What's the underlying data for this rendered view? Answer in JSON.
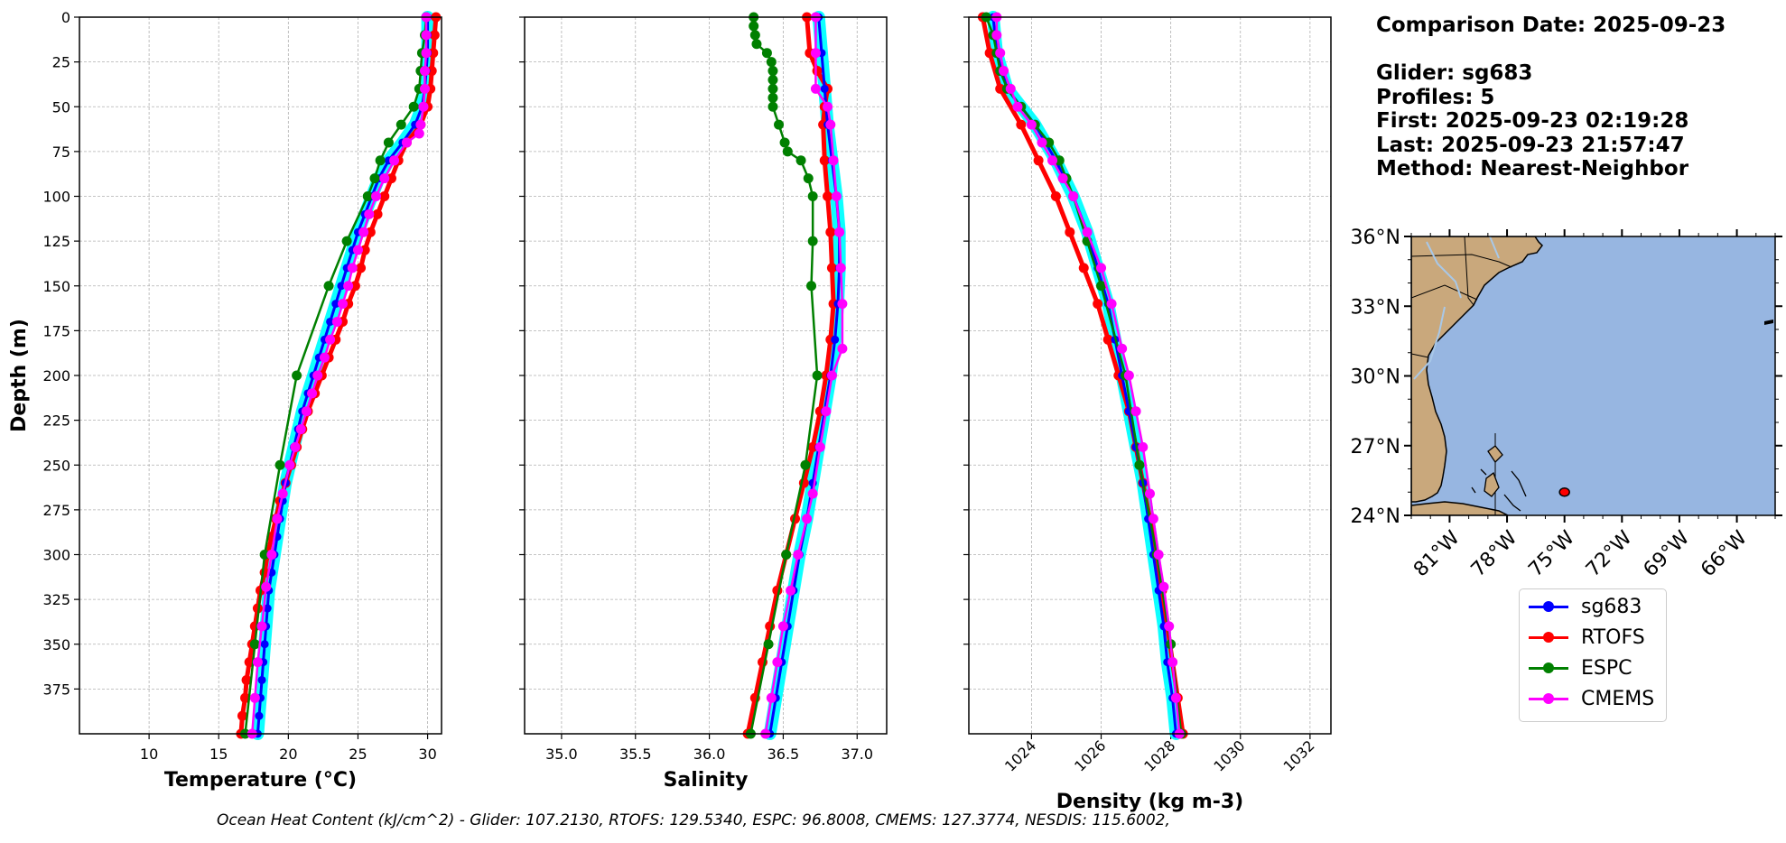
{
  "header": {
    "comparison_date": "Comparison Date: 2025-09-23",
    "glider": "Glider: sg683",
    "profiles": "Profiles: 5",
    "first": "First: 2025-09-23 02:19:28",
    "last": "Last: 2025-09-23 21:57:47",
    "method": "Method: Nearest-Neighbor"
  },
  "footer": "Ocean Heat Content (kJ/cm^2) - Glider: 107.2130,  RTOFS: 129.5340,  ESPC: 96.8008,  CMEMS: 127.3774,  NESDIS: 115.6002,",
  "legend": [
    {
      "name": "sg683",
      "color": "#0000ff"
    },
    {
      "name": "RTOFS",
      "color": "#ff0000"
    },
    {
      "name": "ESPC",
      "color": "#008000"
    },
    {
      "name": "CMEMS",
      "color": "#ff00ff"
    }
  ],
  "colors": {
    "glider_envelope": "#00ffff",
    "ocean": "#97b6e1",
    "land": "#c9a87c",
    "rivers": "#a8c8e8"
  },
  "chart_data": [
    {
      "type": "line",
      "title": "",
      "xlabel": "Temperature (°C)",
      "ylabel": "Depth (m)",
      "xlim": [
        5,
        31
      ],
      "ylim": [
        400,
        0
      ],
      "xticks": [
        "10",
        "15",
        "20",
        "25",
        "30"
      ],
      "yticks": [
        "0",
        "25",
        "50",
        "75",
        "100",
        "125",
        "150",
        "175",
        "200",
        "225",
        "250",
        "275",
        "300",
        "325",
        "350",
        "375"
      ],
      "grid": true,
      "series": [
        {
          "name": "sg683",
          "depth": [
            0,
            10,
            20,
            30,
            40,
            50,
            60,
            70,
            80,
            90,
            100,
            110,
            120,
            130,
            140,
            150,
            160,
            170,
            180,
            190,
            200,
            210,
            220,
            230,
            240,
            250,
            260,
            270,
            280,
            290,
            300,
            310,
            320,
            330,
            340,
            350,
            360,
            370,
            380,
            390,
            400
          ],
          "values": [
            30.0,
            30.0,
            30.0,
            29.9,
            29.8,
            29.6,
            29.1,
            28.2,
            27.2,
            26.5,
            26.0,
            25.5,
            25.0,
            24.6,
            24.2,
            23.8,
            23.4,
            23.0,
            22.6,
            22.2,
            21.8,
            21.4,
            21.0,
            20.7,
            20.4,
            20.1,
            19.8,
            19.6,
            19.4,
            19.2,
            19.0,
            18.8,
            18.6,
            18.5,
            18.4,
            18.3,
            18.2,
            18.1,
            18.0,
            17.9,
            17.8
          ]
        },
        {
          "name": "RTOFS",
          "depth": [
            0,
            10,
            20,
            30,
            40,
            50,
            60,
            70,
            80,
            90,
            100,
            110,
            120,
            130,
            140,
            150,
            160,
            170,
            180,
            190,
            200,
            210,
            220,
            230,
            240,
            250,
            260,
            270,
            280,
            290,
            300,
            310,
            320,
            330,
            340,
            350,
            360,
            370,
            380,
            390,
            400
          ],
          "values": [
            30.6,
            30.5,
            30.4,
            30.3,
            30.2,
            30.0,
            29.5,
            28.5,
            27.9,
            27.4,
            26.9,
            26.4,
            25.9,
            25.5,
            25.2,
            24.8,
            24.3,
            23.9,
            23.4,
            22.9,
            22.4,
            21.9,
            21.4,
            21.0,
            20.6,
            20.2,
            19.8,
            19.4,
            19.1,
            18.8,
            18.5,
            18.3,
            18.0,
            17.8,
            17.6,
            17.4,
            17.2,
            17.0,
            16.9,
            16.7,
            16.6
          ]
        },
        {
          "name": "ESPC",
          "depth": [
            0,
            10,
            20,
            30,
            40,
            50,
            60,
            70,
            80,
            90,
            100,
            125,
            150,
            200,
            250,
            300,
            350,
            400
          ],
          "values": [
            29.9,
            29.8,
            29.6,
            29.5,
            29.4,
            29.0,
            28.1,
            27.2,
            26.6,
            26.2,
            25.7,
            24.2,
            22.9,
            20.6,
            19.4,
            18.3,
            17.6,
            16.9
          ]
        },
        {
          "name": "CMEMS",
          "depth": [
            0,
            10,
            20,
            30,
            40,
            50,
            60,
            65,
            70,
            80,
            90,
            100,
            110,
            120,
            130,
            140,
            150,
            160,
            170,
            180,
            190,
            200,
            210,
            220,
            230,
            240,
            250,
            266,
            280,
            300,
            318,
            340,
            360,
            380,
            400
          ],
          "values": [
            29.9,
            29.9,
            29.9,
            29.8,
            29.8,
            29.7,
            29.5,
            29.4,
            28.5,
            27.6,
            26.9,
            26.3,
            25.8,
            25.4,
            25.0,
            24.6,
            24.3,
            23.9,
            23.5,
            23.0,
            22.6,
            22.1,
            21.7,
            21.3,
            20.9,
            20.5,
            20.1,
            19.6,
            19.2,
            18.8,
            18.4,
            18.1,
            17.8,
            17.6,
            17.4
          ]
        }
      ]
    },
    {
      "type": "line",
      "title": "",
      "xlabel": "Salinity",
      "ylabel": "",
      "xlim": [
        34.75,
        37.2
      ],
      "ylim": [
        400,
        0
      ],
      "xticks": [
        "35.0",
        "35.5",
        "36.0",
        "36.5",
        "37.0"
      ],
      "grid": true,
      "series": [
        {
          "name": "sg683",
          "depth": [
            0,
            20,
            40,
            60,
            80,
            100,
            120,
            140,
            160,
            180,
            200,
            220,
            240,
            260,
            280,
            300,
            320,
            340,
            360,
            380,
            400
          ],
          "values": [
            36.74,
            36.76,
            36.78,
            36.8,
            36.83,
            36.86,
            36.88,
            36.88,
            36.87,
            36.85,
            36.82,
            36.78,
            36.74,
            36.7,
            36.66,
            36.61,
            36.57,
            36.53,
            36.49,
            36.45,
            36.41
          ]
        },
        {
          "name": "RTOFS",
          "depth": [
            0,
            20,
            30,
            40,
            50,
            60,
            80,
            100,
            120,
            140,
            160,
            180,
            200,
            220,
            240,
            260,
            280,
            300,
            320,
            340,
            360,
            380,
            400
          ],
          "values": [
            36.66,
            36.68,
            36.73,
            36.8,
            36.78,
            36.77,
            36.78,
            36.8,
            36.82,
            36.83,
            36.84,
            36.82,
            36.79,
            36.75,
            36.7,
            36.64,
            36.58,
            36.52,
            36.46,
            36.41,
            36.36,
            36.31,
            36.26
          ]
        },
        {
          "name": "ESPC",
          "depth": [
            0,
            5,
            10,
            15,
            20,
            25,
            30,
            35,
            40,
            45,
            50,
            60,
            70,
            75,
            80,
            90,
            100,
            125,
            150,
            200,
            250,
            300,
            350,
            400
          ],
          "values": [
            36.3,
            36.3,
            36.31,
            36.32,
            36.39,
            36.42,
            36.43,
            36.43,
            36.43,
            36.43,
            36.43,
            36.47,
            36.51,
            36.53,
            36.62,
            36.67,
            36.7,
            36.7,
            36.69,
            36.73,
            36.65,
            36.52,
            36.4,
            36.28
          ]
        },
        {
          "name": "CMEMS",
          "depth": [
            0,
            20,
            40,
            50,
            60,
            80,
            100,
            120,
            140,
            160,
            185,
            200,
            220,
            240,
            266,
            280,
            300,
            320,
            340,
            360,
            380,
            400
          ],
          "values": [
            36.72,
            36.72,
            36.72,
            36.8,
            36.82,
            36.84,
            36.86,
            36.88,
            36.89,
            36.9,
            36.9,
            36.83,
            36.79,
            36.75,
            36.7,
            36.66,
            36.6,
            36.55,
            36.5,
            36.46,
            36.42,
            36.38
          ]
        }
      ]
    },
    {
      "type": "line",
      "title": "",
      "xlabel": "Density (kg m-3)",
      "ylabel": "",
      "xlim": [
        1022.2,
        1032.6
      ],
      "ylim": [
        400,
        0
      ],
      "xticks": [
        "1024",
        "1026",
        "1028",
        "1030",
        "1032"
      ],
      "grid": true,
      "series": [
        {
          "name": "sg683",
          "depth": [
            0,
            20,
            40,
            60,
            80,
            100,
            120,
            140,
            160,
            180,
            200,
            220,
            240,
            260,
            280,
            300,
            320,
            340,
            360,
            380,
            400
          ],
          "values": [
            1022.9,
            1023.0,
            1023.3,
            1024.1,
            1024.7,
            1025.2,
            1025.6,
            1025.9,
            1026.2,
            1026.4,
            1026.6,
            1026.8,
            1027.0,
            1027.2,
            1027.35,
            1027.5,
            1027.65,
            1027.8,
            1027.9,
            1028.05,
            1028.15
          ]
        },
        {
          "name": "RTOFS",
          "depth": [
            0,
            20,
            40,
            60,
            80,
            100,
            120,
            140,
            160,
            180,
            200,
            220,
            240,
            260,
            280,
            300,
            320,
            340,
            360,
            380,
            400
          ],
          "values": [
            1022.6,
            1022.8,
            1023.1,
            1023.7,
            1024.2,
            1024.7,
            1025.1,
            1025.5,
            1025.9,
            1026.2,
            1026.5,
            1026.8,
            1027.0,
            1027.2,
            1027.4,
            1027.6,
            1027.75,
            1027.9,
            1028.05,
            1028.2,
            1028.35
          ]
        },
        {
          "name": "ESPC",
          "depth": [
            0,
            10,
            20,
            30,
            40,
            50,
            60,
            70,
            80,
            90,
            100,
            125,
            150,
            200,
            250,
            300,
            350,
            400
          ],
          "values": [
            1022.7,
            1022.9,
            1023.0,
            1023.1,
            1023.3,
            1023.7,
            1024.1,
            1024.5,
            1024.8,
            1025.0,
            1025.2,
            1025.6,
            1026.0,
            1026.7,
            1027.1,
            1027.6,
            1028.0,
            1028.3
          ]
        },
        {
          "name": "CMEMS",
          "depth": [
            0,
            10,
            20,
            30,
            40,
            50,
            60,
            70,
            80,
            90,
            100,
            120,
            140,
            160,
            185,
            200,
            220,
            240,
            266,
            280,
            300,
            318,
            340,
            360,
            380,
            400
          ],
          "values": [
            1023.0,
            1023.0,
            1023.1,
            1023.2,
            1023.4,
            1023.6,
            1024.0,
            1024.3,
            1024.6,
            1024.9,
            1025.2,
            1025.6,
            1026.0,
            1026.3,
            1026.6,
            1026.8,
            1027.0,
            1027.2,
            1027.4,
            1027.5,
            1027.65,
            1027.8,
            1027.95,
            1028.05,
            1028.15,
            1028.25
          ]
        }
      ]
    },
    {
      "type": "map",
      "lon_range": [
        -83,
        -64
      ],
      "lat_range": [
        24,
        36
      ],
      "lat_ticks": [
        "24°N",
        "27°N",
        "30°N",
        "33°N",
        "36°N"
      ],
      "lon_ticks": [
        "81°W",
        "78°W",
        "75°W",
        "72°W",
        "69°W",
        "66°W"
      ],
      "marker": {
        "lon": -75.0,
        "lat": 25.0,
        "color": "#ff0000"
      }
    }
  ]
}
